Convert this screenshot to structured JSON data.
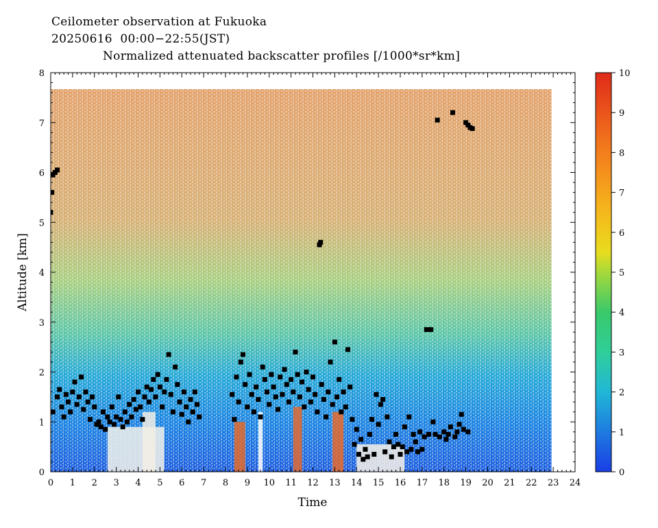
{
  "title": {
    "line1": "Ceilometer observation at Fukuoka",
    "line2": "20250616  00:00−22:55(JST)",
    "line3": "Normalized attenuated backscatter profiles [/1000*sr*km]"
  },
  "chart_data": {
    "type": "heatmap",
    "xlabel": "Time",
    "ylabel": "Altitude [km]",
    "xlim": [
      0,
      24
    ],
    "ylim": [
      0,
      8
    ],
    "x_ticks": [
      "0",
      "1",
      "2",
      "3",
      "4",
      "5",
      "6",
      "7",
      "8",
      "9",
      "10",
      "11",
      "12",
      "13",
      "14",
      "15",
      "16",
      "17",
      "18",
      "19",
      "20",
      "21",
      "22",
      "23",
      "24"
    ],
    "y_ticks": [
      "0",
      "1",
      "2",
      "3",
      "4",
      "5",
      "6",
      "7",
      "8"
    ],
    "data_x_range": [
      0,
      22.92
    ],
    "data_y_max": 7.67,
    "colorbar": {
      "range": [
        0,
        10
      ],
      "ticks": [
        "0",
        "1",
        "2",
        "3",
        "4",
        "5",
        "6",
        "7",
        "8",
        "9",
        "10"
      ],
      "colors": [
        "#1a3ee6",
        "#1e7be0",
        "#21b7d6",
        "#3ac96a",
        "#8ed43a",
        "#e8dc1e",
        "#f5a31c",
        "#f07a1c",
        "#e8521e",
        "#e02a1a"
      ]
    },
    "cloud_base_points": [
      {
        "x": 0.0,
        "y": 5.2
      },
      {
        "x": 0.05,
        "y": 5.6
      },
      {
        "x": 0.1,
        "y": 5.95
      },
      {
        "x": 0.2,
        "y": 6.0
      },
      {
        "x": 0.3,
        "y": 6.05
      },
      {
        "x": 0.1,
        "y": 1.2
      },
      {
        "x": 0.3,
        "y": 1.5
      },
      {
        "x": 0.4,
        "y": 1.65
      },
      {
        "x": 0.5,
        "y": 1.3
      },
      {
        "x": 0.6,
        "y": 1.1
      },
      {
        "x": 0.7,
        "y": 1.55
      },
      {
        "x": 0.8,
        "y": 1.4
      },
      {
        "x": 0.9,
        "y": 1.2
      },
      {
        "x": 1.0,
        "y": 1.6
      },
      {
        "x": 1.1,
        "y": 1.8
      },
      {
        "x": 1.2,
        "y": 1.35
      },
      {
        "x": 1.3,
        "y": 1.5
      },
      {
        "x": 1.4,
        "y": 1.9
      },
      {
        "x": 1.5,
        "y": 1.25
      },
      {
        "x": 1.6,
        "y": 1.6
      },
      {
        "x": 1.7,
        "y": 1.4
      },
      {
        "x": 1.8,
        "y": 1.05
      },
      {
        "x": 1.9,
        "y": 1.5
      },
      {
        "x": 2.0,
        "y": 1.3
      },
      {
        "x": 2.1,
        "y": 0.95
      },
      {
        "x": 2.2,
        "y": 1.0
      },
      {
        "x": 2.3,
        "y": 0.9
      },
      {
        "x": 2.4,
        "y": 1.2
      },
      {
        "x": 2.5,
        "y": 0.85
      },
      {
        "x": 2.6,
        "y": 1.1
      },
      {
        "x": 2.7,
        "y": 1.0
      },
      {
        "x": 2.8,
        "y": 1.3
      },
      {
        "x": 2.9,
        "y": 0.95
      },
      {
        "x": 3.0,
        "y": 1.1
      },
      {
        "x": 3.1,
        "y": 1.5
      },
      {
        "x": 3.2,
        "y": 1.05
      },
      {
        "x": 3.3,
        "y": 0.9
      },
      {
        "x": 3.4,
        "y": 1.2
      },
      {
        "x": 3.5,
        "y": 1.0
      },
      {
        "x": 3.6,
        "y": 1.35
      },
      {
        "x": 3.7,
        "y": 1.1
      },
      {
        "x": 3.8,
        "y": 1.45
      },
      {
        "x": 3.9,
        "y": 1.25
      },
      {
        "x": 4.0,
        "y": 1.6
      },
      {
        "x": 4.1,
        "y": 1.3
      },
      {
        "x": 4.2,
        "y": 1.05
      },
      {
        "x": 4.3,
        "y": 1.5
      },
      {
        "x": 4.4,
        "y": 1.7
      },
      {
        "x": 4.5,
        "y": 1.4
      },
      {
        "x": 4.6,
        "y": 1.65
      },
      {
        "x": 4.7,
        "y": 1.85
      },
      {
        "x": 4.8,
        "y": 1.5
      },
      {
        "x": 4.9,
        "y": 1.95
      },
      {
        "x": 5.0,
        "y": 1.7
      },
      {
        "x": 5.1,
        "y": 1.3
      },
      {
        "x": 5.2,
        "y": 1.6
      },
      {
        "x": 5.3,
        "y": 1.85
      },
      {
        "x": 5.4,
        "y": 2.35
      },
      {
        "x": 5.5,
        "y": 1.55
      },
      {
        "x": 5.6,
        "y": 1.2
      },
      {
        "x": 5.7,
        "y": 2.1
      },
      {
        "x": 5.8,
        "y": 1.75
      },
      {
        "x": 5.9,
        "y": 1.4
      },
      {
        "x": 6.0,
        "y": 1.15
      },
      {
        "x": 6.1,
        "y": 1.6
      },
      {
        "x": 6.2,
        "y": 1.3
      },
      {
        "x": 6.3,
        "y": 1.0
      },
      {
        "x": 6.4,
        "y": 1.45
      },
      {
        "x": 6.5,
        "y": 1.2
      },
      {
        "x": 6.6,
        "y": 1.6
      },
      {
        "x": 6.7,
        "y": 1.35
      },
      {
        "x": 6.8,
        "y": 1.1
      },
      {
        "x": 8.3,
        "y": 1.55
      },
      {
        "x": 8.4,
        "y": 1.05
      },
      {
        "x": 8.5,
        "y": 1.9
      },
      {
        "x": 8.6,
        "y": 1.4
      },
      {
        "x": 8.7,
        "y": 2.2
      },
      {
        "x": 8.8,
        "y": 2.35
      },
      {
        "x": 8.9,
        "y": 1.75
      },
      {
        "x": 9.0,
        "y": 1.3
      },
      {
        "x": 9.1,
        "y": 1.95
      },
      {
        "x": 9.2,
        "y": 1.55
      },
      {
        "x": 9.3,
        "y": 1.2
      },
      {
        "x": 9.4,
        "y": 1.7
      },
      {
        "x": 9.5,
        "y": 1.45
      },
      {
        "x": 9.6,
        "y": 1.1
      },
      {
        "x": 9.7,
        "y": 2.1
      },
      {
        "x": 9.8,
        "y": 1.85
      },
      {
        "x": 9.9,
        "y": 1.6
      },
      {
        "x": 10.0,
        "y": 1.35
      },
      {
        "x": 10.1,
        "y": 1.95
      },
      {
        "x": 10.2,
        "y": 1.7
      },
      {
        "x": 10.3,
        "y": 1.5
      },
      {
        "x": 10.4,
        "y": 1.25
      },
      {
        "x": 10.5,
        "y": 1.9
      },
      {
        "x": 10.6,
        "y": 1.55
      },
      {
        "x": 10.7,
        "y": 2.05
      },
      {
        "x": 10.8,
        "y": 1.75
      },
      {
        "x": 10.9,
        "y": 1.4
      },
      {
        "x": 11.0,
        "y": 1.85
      },
      {
        "x": 11.1,
        "y": 1.6
      },
      {
        "x": 11.2,
        "y": 2.4
      },
      {
        "x": 11.3,
        "y": 1.95
      },
      {
        "x": 11.4,
        "y": 1.5
      },
      {
        "x": 11.5,
        "y": 1.8
      },
      {
        "x": 11.6,
        "y": 1.3
      },
      {
        "x": 11.7,
        "y": 2.0
      },
      {
        "x": 11.8,
        "y": 1.65
      },
      {
        "x": 11.9,
        "y": 1.4
      },
      {
        "x": 12.0,
        "y": 1.9
      },
      {
        "x": 12.1,
        "y": 1.55
      },
      {
        "x": 12.2,
        "y": 1.2
      },
      {
        "x": 12.3,
        "y": 4.55
      },
      {
        "x": 12.35,
        "y": 4.6
      },
      {
        "x": 12.4,
        "y": 1.75
      },
      {
        "x": 12.5,
        "y": 1.45
      },
      {
        "x": 12.6,
        "y": 1.1
      },
      {
        "x": 12.7,
        "y": 1.6
      },
      {
        "x": 12.8,
        "y": 2.2
      },
      {
        "x": 12.9,
        "y": 1.35
      },
      {
        "x": 13.0,
        "y": 2.6
      },
      {
        "x": 13.1,
        "y": 1.5
      },
      {
        "x": 13.2,
        "y": 1.85
      },
      {
        "x": 13.3,
        "y": 1.2
      },
      {
        "x": 13.4,
        "y": 1.6
      },
      {
        "x": 13.5,
        "y": 1.3
      },
      {
        "x": 13.6,
        "y": 2.45
      },
      {
        "x": 13.7,
        "y": 1.7
      },
      {
        "x": 13.8,
        "y": 1.05
      },
      {
        "x": 13.9,
        "y": 0.55
      },
      {
        "x": 14.0,
        "y": 0.85
      },
      {
        "x": 14.1,
        "y": 0.35
      },
      {
        "x": 14.2,
        "y": 0.65
      },
      {
        "x": 14.3,
        "y": 0.25
      },
      {
        "x": 14.4,
        "y": 0.45
      },
      {
        "x": 14.5,
        "y": 0.3
      },
      {
        "x": 14.6,
        "y": 0.75
      },
      {
        "x": 14.7,
        "y": 1.05
      },
      {
        "x": 14.8,
        "y": 0.35
      },
      {
        "x": 14.9,
        "y": 1.55
      },
      {
        "x": 15.0,
        "y": 0.95
      },
      {
        "x": 15.1,
        "y": 1.35
      },
      {
        "x": 15.2,
        "y": 1.45
      },
      {
        "x": 15.3,
        "y": 0.4
      },
      {
        "x": 15.4,
        "y": 1.1
      },
      {
        "x": 15.5,
        "y": 0.6
      },
      {
        "x": 15.6,
        "y": 0.3
      },
      {
        "x": 15.7,
        "y": 0.5
      },
      {
        "x": 15.8,
        "y": 0.75
      },
      {
        "x": 15.9,
        "y": 0.55
      },
      {
        "x": 16.0,
        "y": 0.35
      },
      {
        "x": 16.1,
        "y": 0.5
      },
      {
        "x": 16.2,
        "y": 0.9
      },
      {
        "x": 16.3,
        "y": 0.4
      },
      {
        "x": 16.4,
        "y": 1.1
      },
      {
        "x": 16.5,
        "y": 0.45
      },
      {
        "x": 16.6,
        "y": 0.75
      },
      {
        "x": 16.7,
        "y": 0.6
      },
      {
        "x": 16.8,
        "y": 0.4
      },
      {
        "x": 16.9,
        "y": 0.8
      },
      {
        "x": 17.0,
        "y": 0.45
      },
      {
        "x": 17.1,
        "y": 0.7
      },
      {
        "x": 17.2,
        "y": 2.85
      },
      {
        "x": 17.3,
        "y": 0.75
      },
      {
        "x": 17.4,
        "y": 2.85
      },
      {
        "x": 17.5,
        "y": 1.0
      },
      {
        "x": 17.6,
        "y": 0.75
      },
      {
        "x": 17.7,
        "y": 7.05
      },
      {
        "x": 17.8,
        "y": 0.7
      },
      {
        "x": 18.0,
        "y": 0.8
      },
      {
        "x": 18.1,
        "y": 0.65
      },
      {
        "x": 18.2,
        "y": 0.75
      },
      {
        "x": 18.3,
        "y": 0.9
      },
      {
        "x": 18.4,
        "y": 7.2
      },
      {
        "x": 18.5,
        "y": 0.7
      },
      {
        "x": 18.6,
        "y": 0.8
      },
      {
        "x": 18.7,
        "y": 0.95
      },
      {
        "x": 18.8,
        "y": 1.15
      },
      {
        "x": 18.9,
        "y": 0.85
      },
      {
        "x": 19.0,
        "y": 7.0
      },
      {
        "x": 19.1,
        "y": 6.95
      },
      {
        "x": 19.2,
        "y": 6.9
      },
      {
        "x": 19.3,
        "y": 6.88
      },
      {
        "x": 19.1,
        "y": 0.8
      }
    ]
  }
}
